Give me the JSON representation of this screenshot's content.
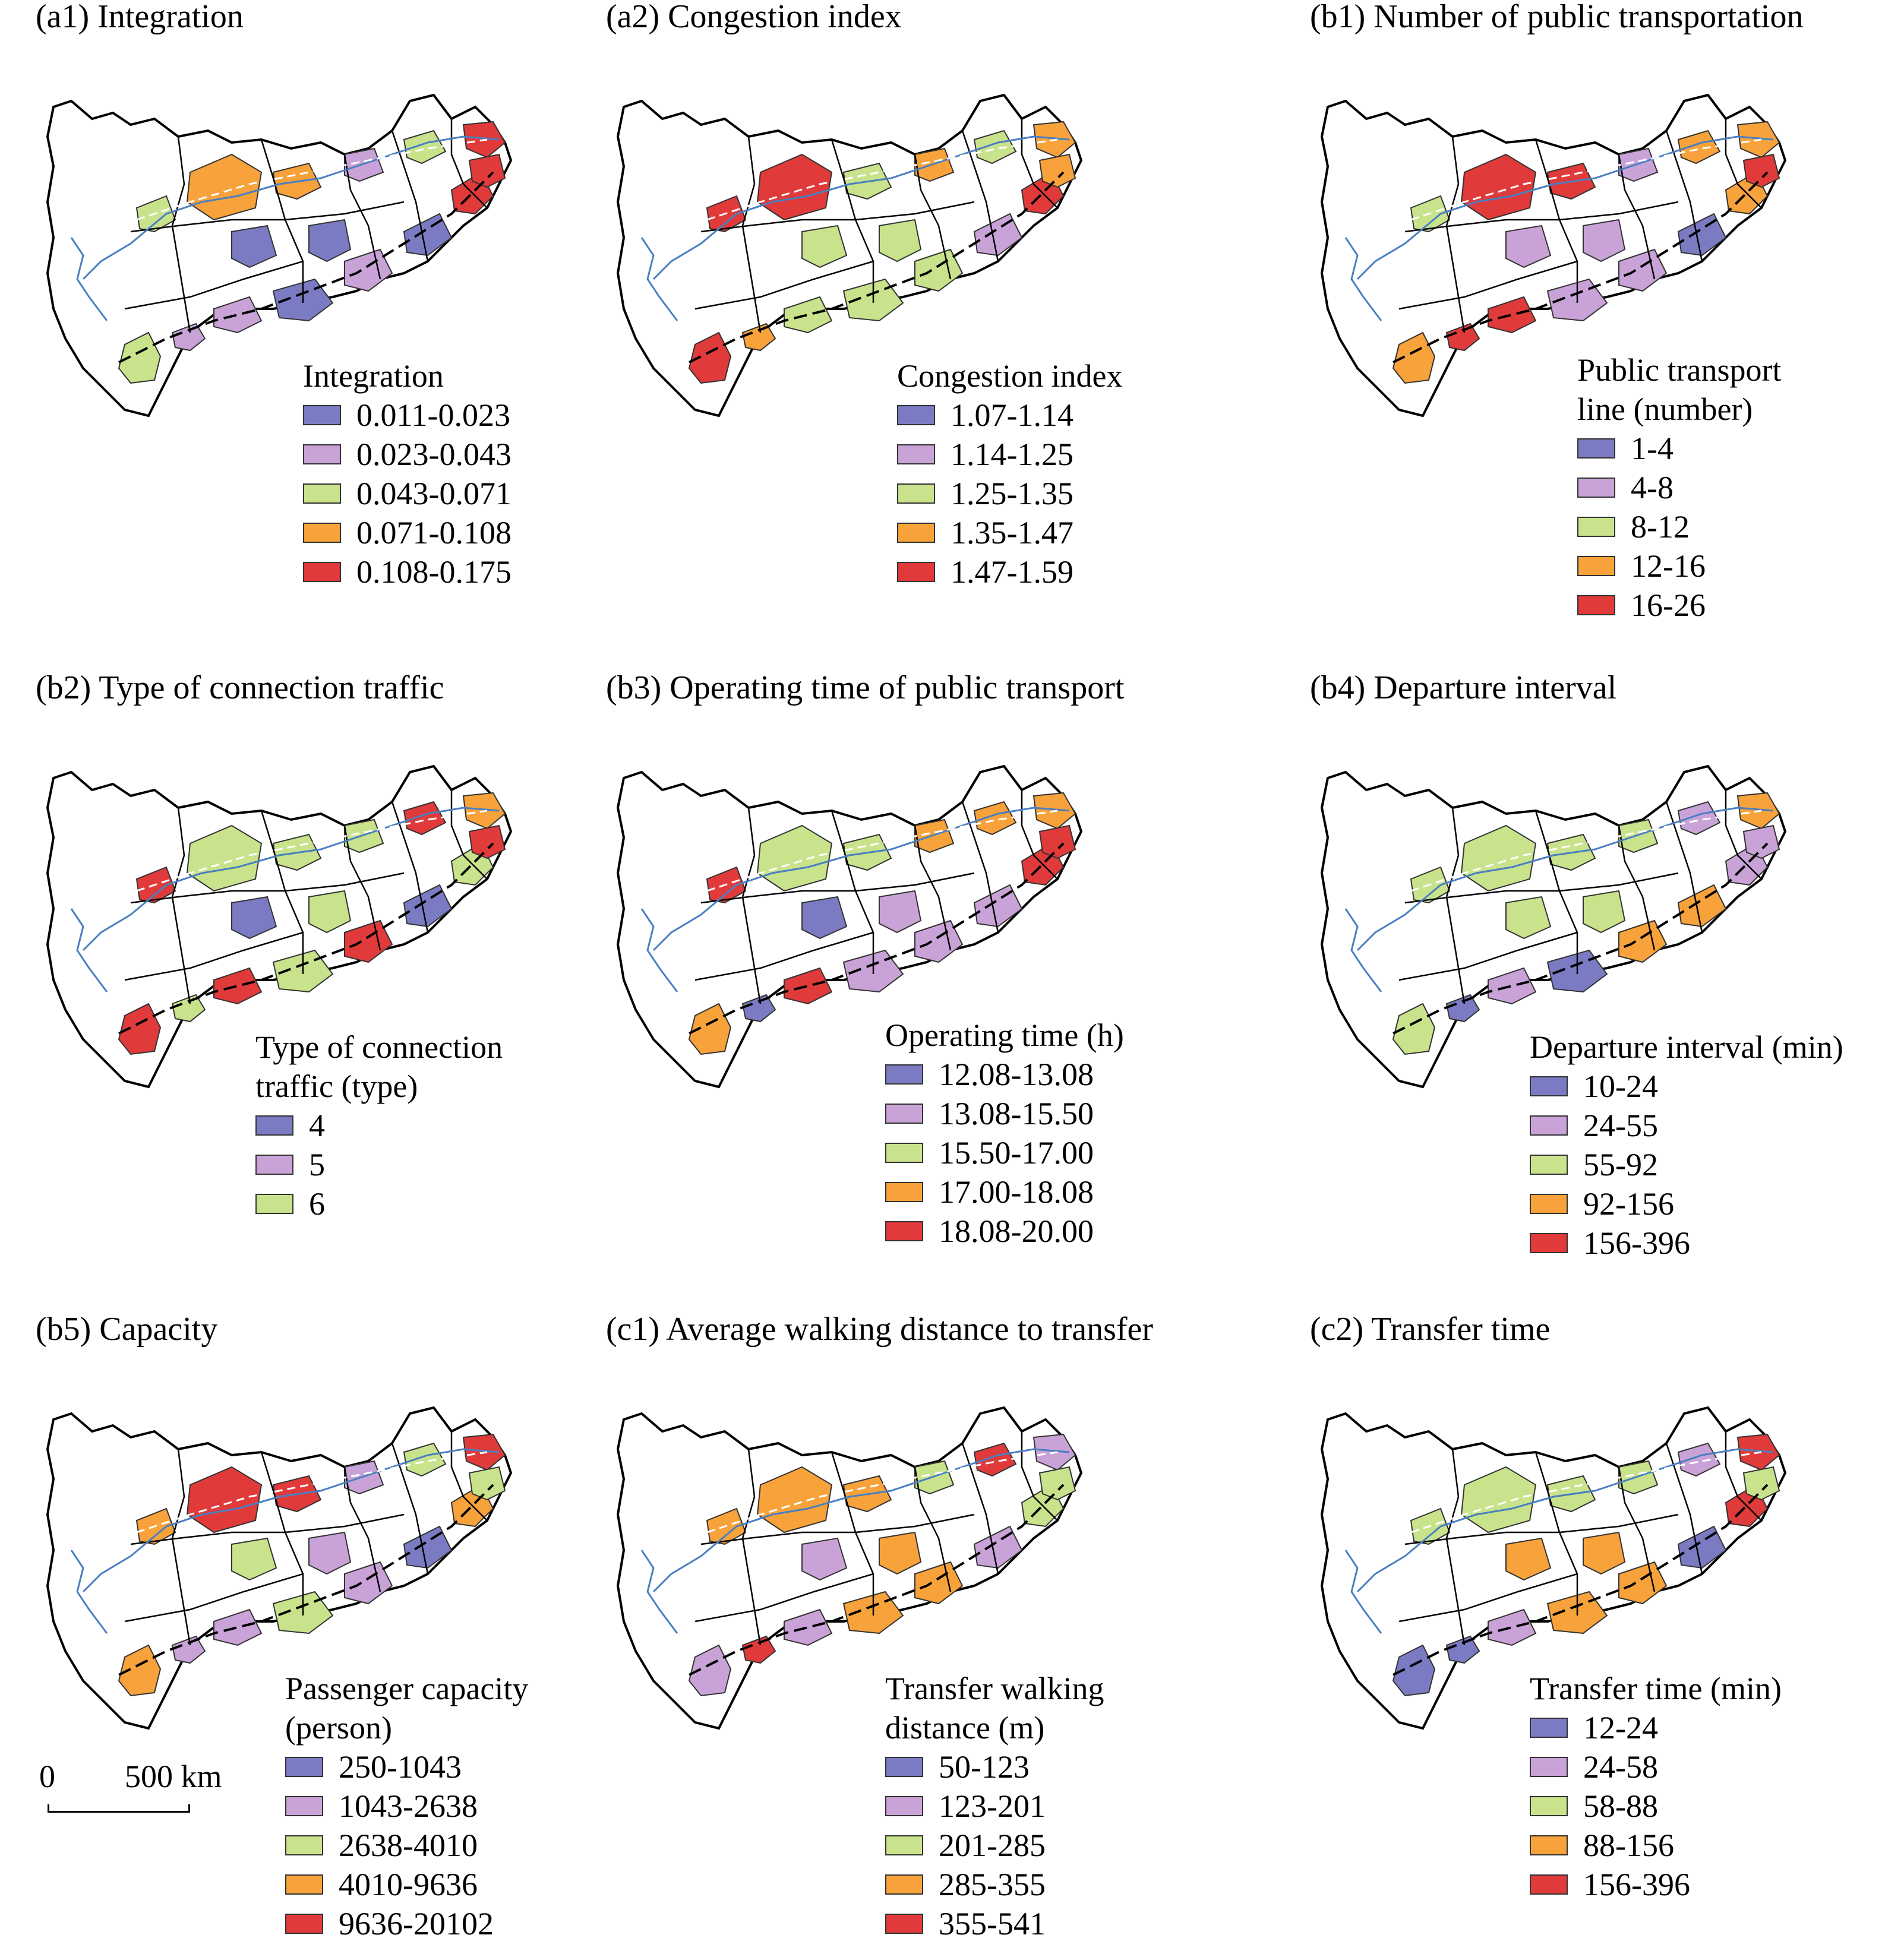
{
  "colors": {
    "c1": "#7b7bc4",
    "c2": "#c9a3d8",
    "c3": "#c9e38c",
    "c4": "#f7a23b",
    "c5": "#e03a3a",
    "river": "#4a7fc1"
  },
  "panels": [
    {
      "id": "a1",
      "title": "(a1) Integration",
      "legend_title": [
        "Integration"
      ],
      "classes": [
        "0.011-0.023",
        "0.023-0.043",
        "0.043-0.071",
        "0.071-0.108",
        "0.108-0.175"
      ]
    },
    {
      "id": "a2",
      "title": "(a2) Congestion index",
      "legend_title": [
        "Congestion index"
      ],
      "classes": [
        "1.07-1.14",
        "1.14-1.25",
        "1.25-1.35",
        "1.35-1.47",
        "1.47-1.59"
      ]
    },
    {
      "id": "b1",
      "title": "(b1) Number of public transportation",
      "legend_title": [
        "Public transport",
        "line (number)"
      ],
      "classes": [
        "1-4",
        "4-8",
        "8-12",
        "12-16",
        "16-26"
      ]
    },
    {
      "id": "b2",
      "title": "(b2) Type of connection traffic",
      "legend_title": [
        "Type of connection",
        "traffic (type)"
      ],
      "classes": [
        "4",
        "5",
        "6"
      ]
    },
    {
      "id": "b3",
      "title": "(b3) Operating time of public transport",
      "legend_title": [
        "Operating time (h)"
      ],
      "classes": [
        "12.08-13.08",
        "13.08-15.50",
        "15.50-17.00",
        "17.00-18.08",
        "18.08-20.00"
      ]
    },
    {
      "id": "b4",
      "title": "(b4) Departure interval",
      "legend_title": [
        "Departure interval (min)"
      ],
      "classes": [
        "10-24",
        "24-55",
        "55-92",
        "92-156",
        "156-396"
      ]
    },
    {
      "id": "b5",
      "title": "(b5) Capacity",
      "legend_title": [
        "Passenger capacity",
        "(person)"
      ],
      "classes": [
        "250-1043",
        "1043-2638",
        "2638-4010",
        "4010-9636",
        "9636-20102"
      ]
    },
    {
      "id": "c1",
      "title": "(c1) Average walking distance to transfer",
      "legend_title": [
        "Transfer walking",
        "distance (m)"
      ],
      "classes": [
        "50-123",
        "123-201",
        "201-285",
        "285-355",
        "355-541"
      ]
    },
    {
      "id": "c2",
      "title": "(c2) Transfer time",
      "legend_title": [
        "Transfer time (min)"
      ],
      "classes": [
        "12-24",
        "24-58",
        "58-88",
        "88-156",
        "156-396"
      ]
    }
  ],
  "scale_bar": {
    "start": "0",
    "end": "500 km"
  }
}
